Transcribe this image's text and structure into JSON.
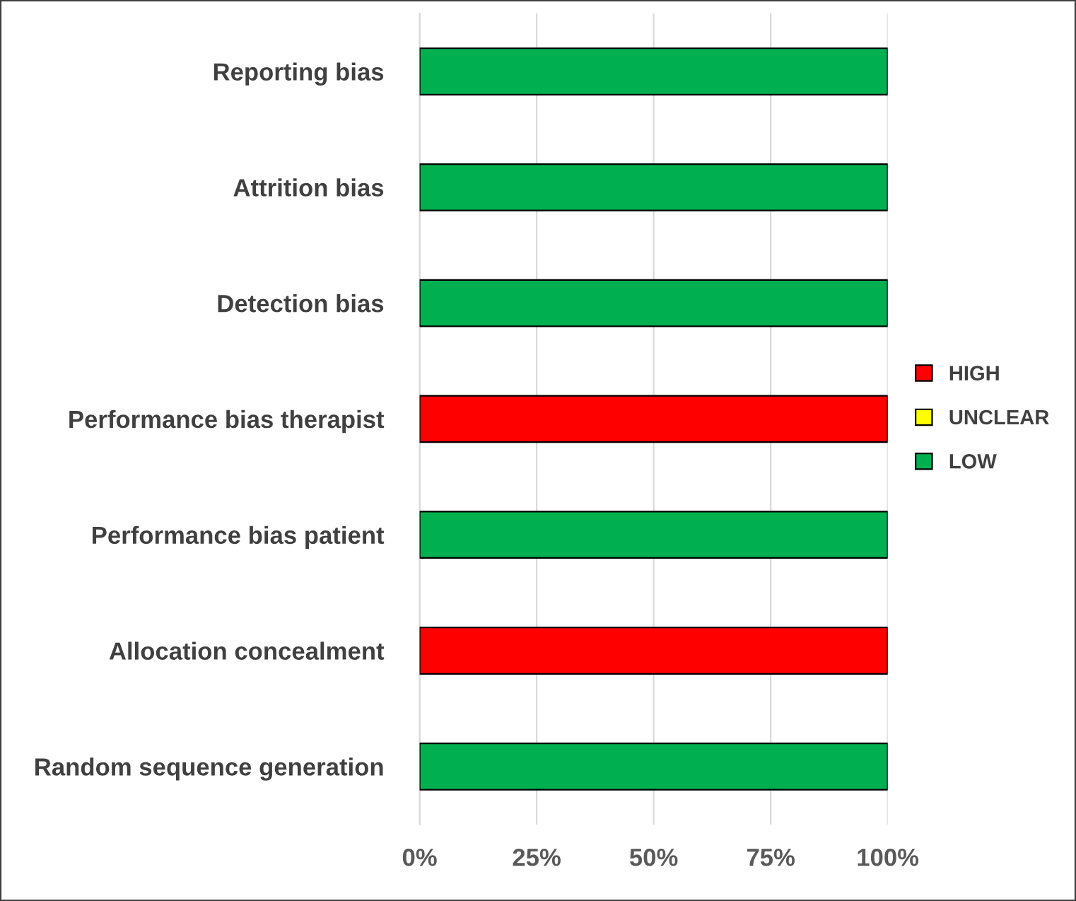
{
  "chart_data": {
    "type": "bar",
    "orientation": "horizontal",
    "stacked": true,
    "categories": [
      "Reporting bias",
      "Attrition bias",
      "Detection bias",
      "Performance bias therapist",
      "Performance bias patient",
      "Allocation concealment",
      "Random sequence generation"
    ],
    "series": [
      {
        "name": "HIGH",
        "color": "#ff0000",
        "values": [
          0,
          0,
          0,
          100,
          0,
          100,
          0
        ]
      },
      {
        "name": "UNCLEAR",
        "color": "#ffff00",
        "values": [
          0,
          0,
          0,
          0,
          0,
          0,
          0
        ]
      },
      {
        "name": "LOW",
        "color": "#00b050",
        "values": [
          100,
          100,
          100,
          0,
          100,
          0,
          100
        ]
      }
    ],
    "xlim": [
      0,
      100
    ],
    "xticks": [
      {
        "value": 0,
        "label": "0%"
      },
      {
        "value": 25,
        "label": "25%"
      },
      {
        "value": 50,
        "label": "50%"
      },
      {
        "value": 75,
        "label": "75%"
      },
      {
        "value": 100,
        "label": "100%"
      }
    ],
    "grid": "x",
    "legend": "right"
  }
}
